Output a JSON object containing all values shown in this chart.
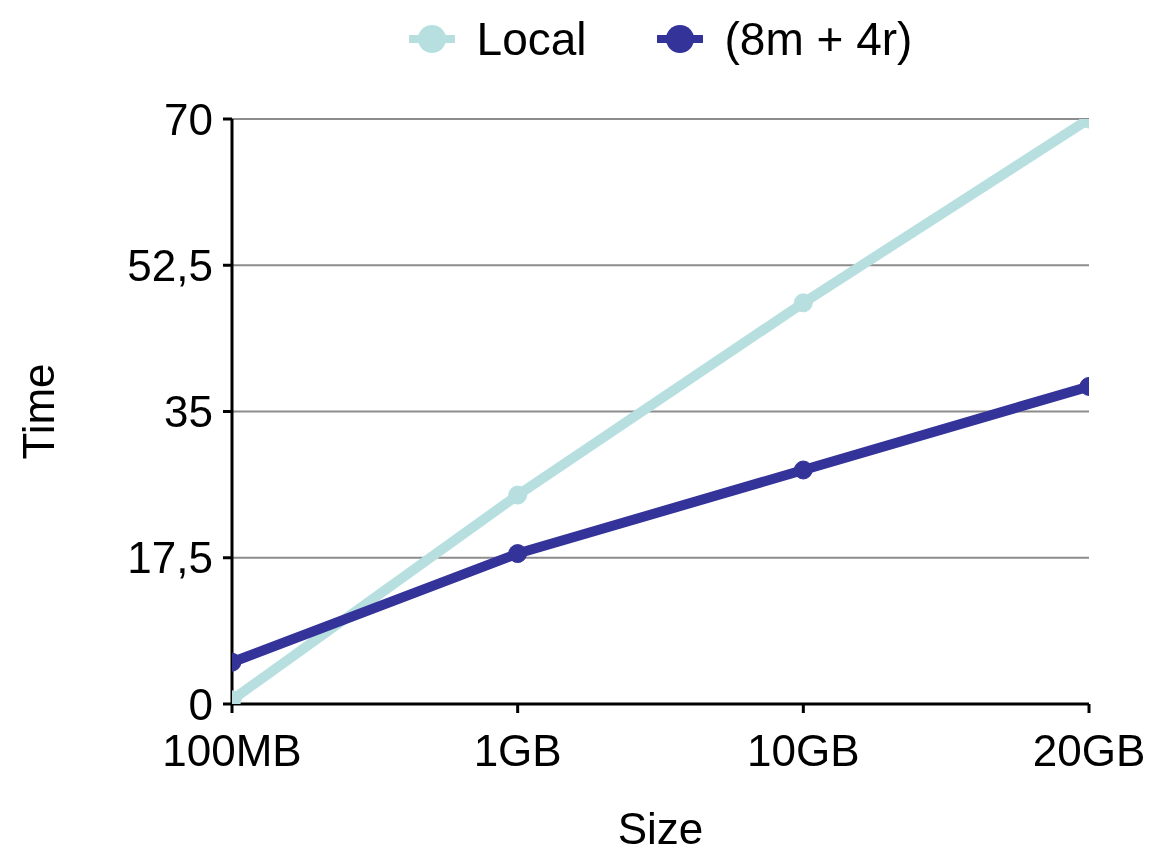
{
  "chart_data": {
    "type": "line",
    "xlabel": "Size",
    "ylabel": "Time",
    "categories": [
      "100MB",
      "1GB",
      "10GB",
      "20GB"
    ],
    "series": [
      {
        "name": "Local",
        "color": "#b8dfe0",
        "values": [
          0.5,
          25,
          48,
          70
        ]
      },
      {
        "name": "(8m + 4r)",
        "color": "#333399",
        "values": [
          5,
          18,
          28,
          38
        ]
      }
    ],
    "ylim": [
      0,
      70
    ],
    "yticks": [
      0,
      {
        "value": 17.5,
        "label": "17,5"
      },
      35,
      {
        "value": 52.5,
        "label": "52,5"
      },
      70
    ],
    "grid": "y",
    "legend": "top",
    "marker": "circle",
    "line_style": "solid"
  }
}
